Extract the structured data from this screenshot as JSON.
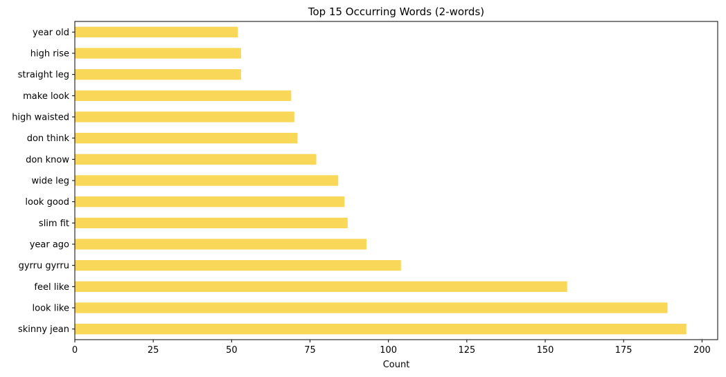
{
  "chart_data": {
    "type": "bar",
    "orientation": "horizontal",
    "title": "Top 15 Occurring Words (2-words)",
    "xlabel": "Count",
    "ylabel": "",
    "categories": [
      "skinny jean",
      "look like",
      "feel like",
      "gyrru gyrru",
      "year ago",
      "slim fit",
      "look good",
      "wide leg",
      "don know",
      "don think",
      "high waisted",
      "make look",
      "straight leg",
      "high rise",
      "year old"
    ],
    "values": [
      195,
      189,
      157,
      104,
      93,
      87,
      86,
      84,
      77,
      71,
      70,
      69,
      53,
      53,
      52
    ],
    "xlim": [
      0,
      205
    ],
    "xticks": [
      0,
      25,
      50,
      75,
      100,
      125,
      150,
      175,
      200
    ],
    "bar_color": "#f9d758",
    "grid": false,
    "legend": "none"
  }
}
